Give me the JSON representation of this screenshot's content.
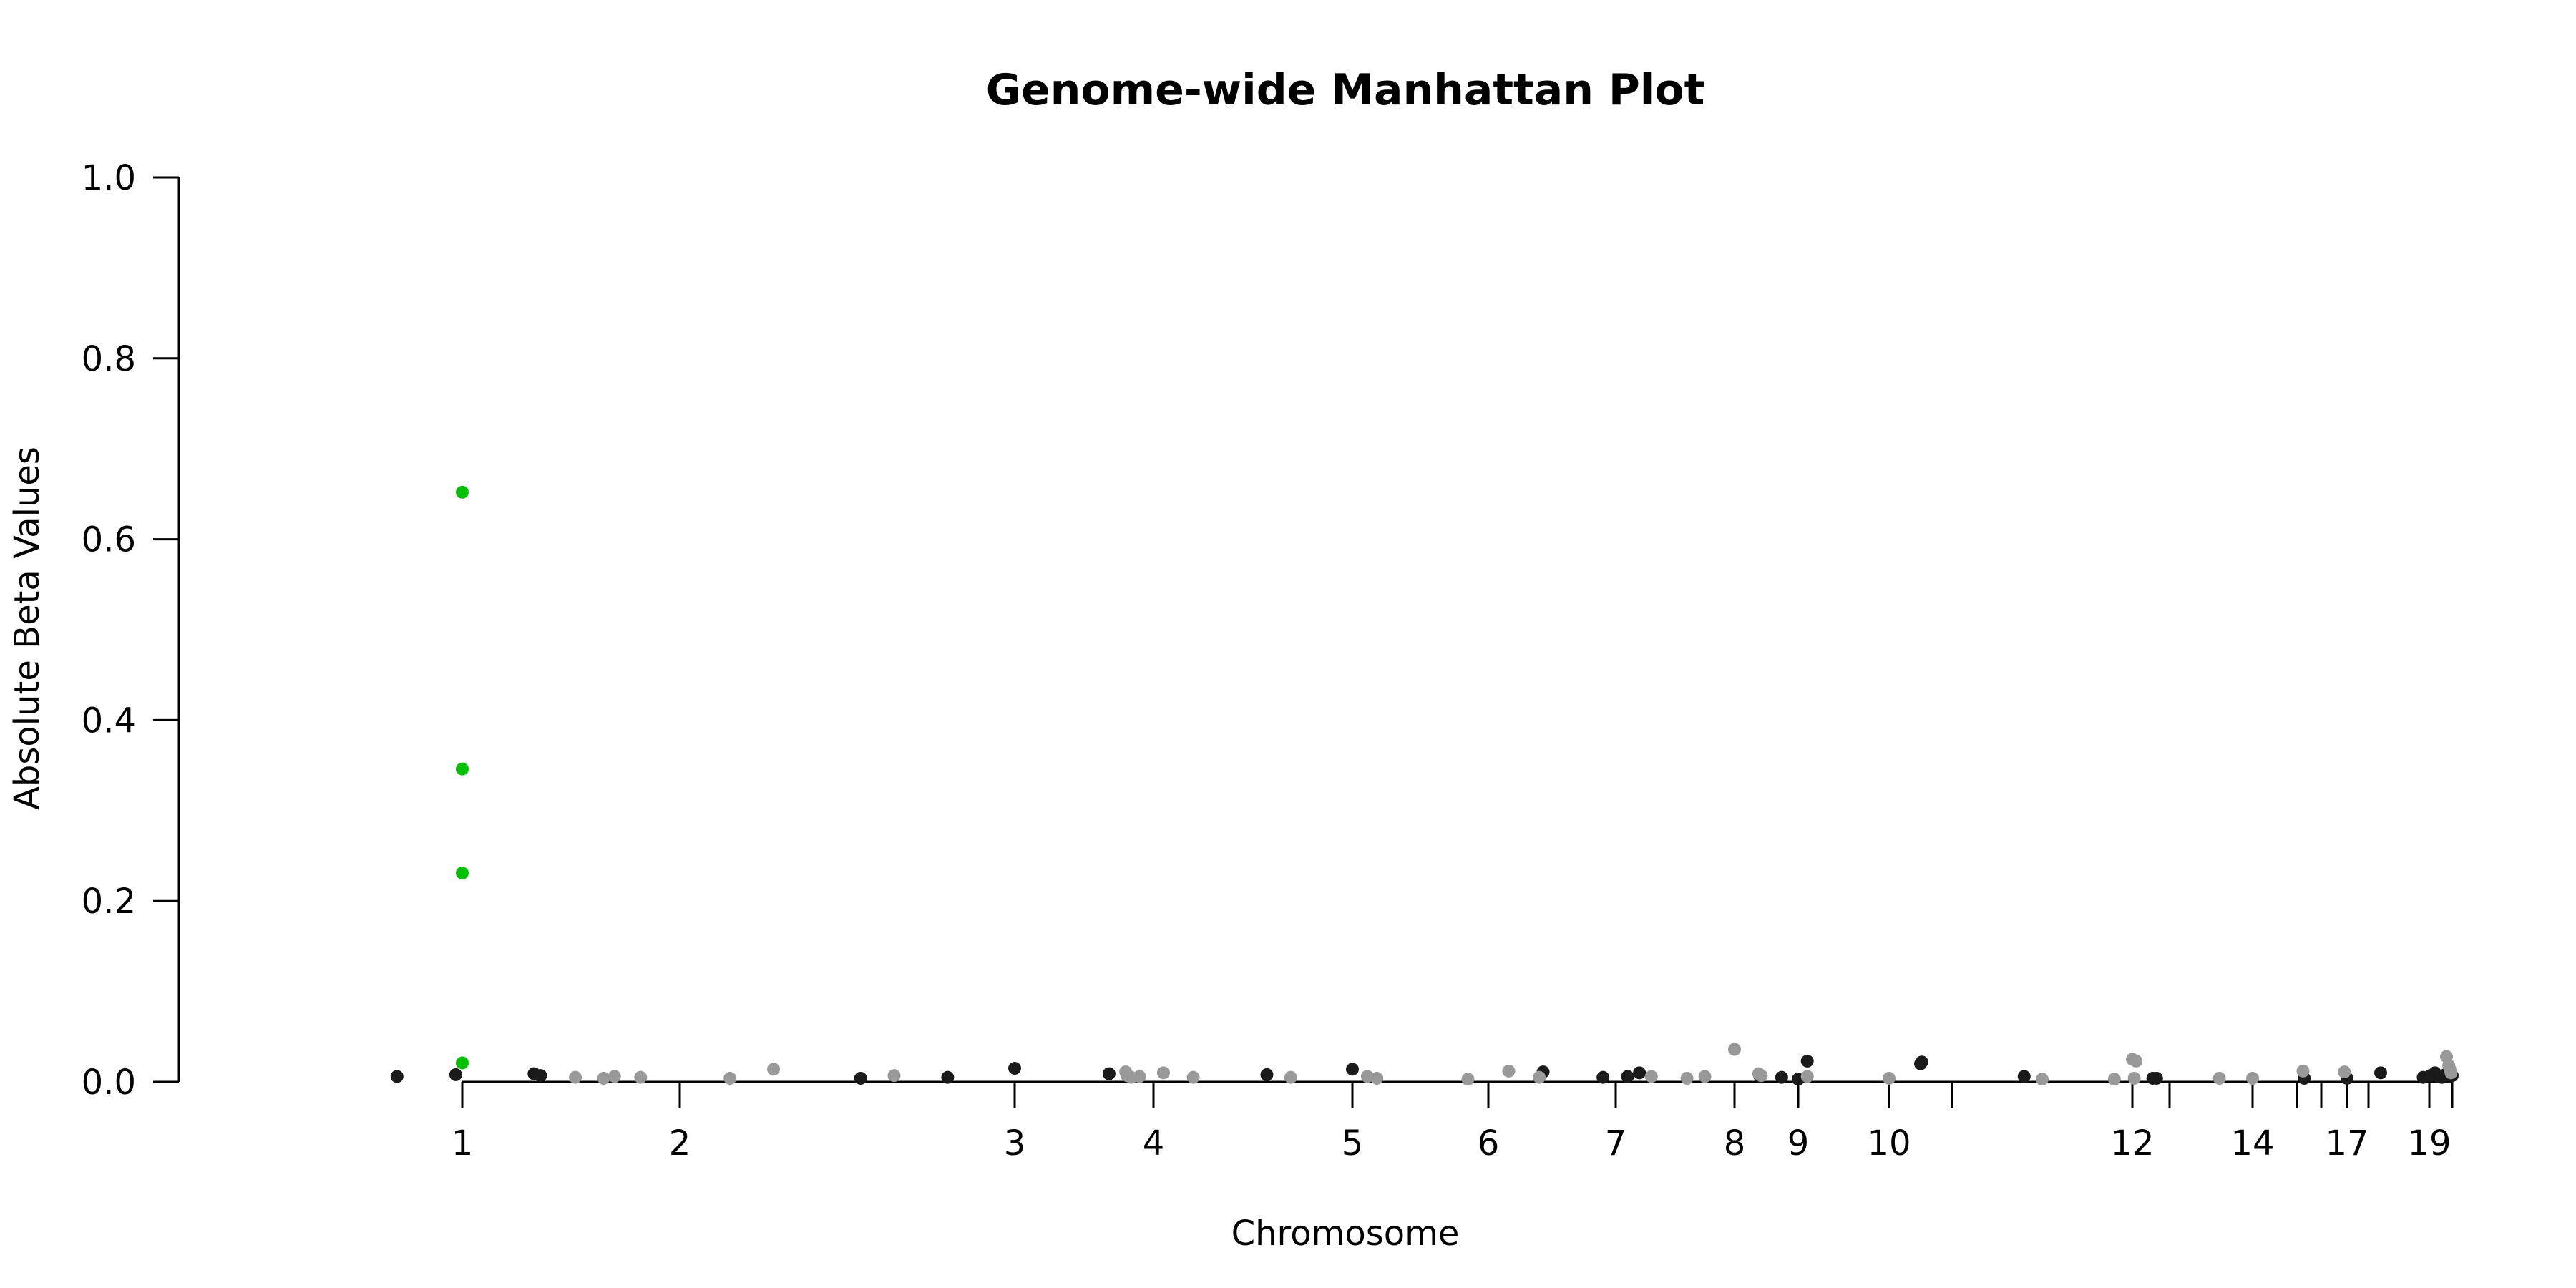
{
  "chart_data": {
    "type": "scatter",
    "title": "Genome-wide Manhattan Plot",
    "xlabel": "Chromosome",
    "ylabel": "Absolute Beta Values",
    "ylim": [
      0,
      1
    ],
    "yticks": [
      "0.0",
      "0.2",
      "0.4",
      "0.6",
      "0.8",
      "1.0"
    ],
    "grid": false,
    "legend": "none",
    "colors": {
      "dark": "#1a1a1a",
      "light": "#999999",
      "highlight": "#00c000"
    },
    "chromosomes": [
      {
        "label": "1",
        "pos": 1
      },
      {
        "label": "2",
        "pos": 2
      },
      {
        "label": "3",
        "pos": 3
      },
      {
        "label": "4",
        "pos": 4
      },
      {
        "label": "5",
        "pos": 5
      },
      {
        "label": "6",
        "pos": 6
      },
      {
        "label": "7",
        "pos": 7
      },
      {
        "label": "8",
        "pos": 8
      },
      {
        "label": "9",
        "pos": 9
      },
      {
        "label": "10",
        "pos": 10
      },
      {
        "label": "",
        "pos": 11
      },
      {
        "label": "12",
        "pos": 12
      },
      {
        "label": "",
        "pos": 13
      },
      {
        "label": "14",
        "pos": 14
      },
      {
        "label": "",
        "pos": 15
      },
      {
        "label": "",
        "pos": 16
      },
      {
        "label": "17",
        "pos": 17
      },
      {
        "label": "",
        "pos": 18
      },
      {
        "label": "19",
        "pos": 19
      },
      {
        "label": "",
        "pos": 20
      }
    ],
    "highlight_points": [
      {
        "x": 1.0,
        "y": 0.652
      },
      {
        "x": 1.0,
        "y": 0.346
      },
      {
        "x": 1.0,
        "y": 0.231
      },
      {
        "x": 1.0,
        "y": 0.021
      }
    ],
    "series": [
      {
        "color": "dark",
        "points": [
          [
            0.7,
            0.006
          ],
          [
            0.97,
            0.008
          ],
          [
            1.33,
            0.009
          ],
          [
            1.36,
            0.007
          ],
          [
            2.54,
            0.004
          ],
          [
            2.8,
            0.005
          ],
          [
            3.0,
            0.015
          ],
          [
            3.68,
            0.009
          ],
          [
            4.57,
            0.008
          ],
          [
            5.0,
            0.014
          ],
          [
            6.43,
            0.011
          ],
          [
            6.9,
            0.005
          ],
          [
            7.1,
            0.006
          ],
          [
            7.2,
            0.01
          ],
          [
            8.4,
            0.006
          ],
          [
            8.74,
            0.005
          ],
          [
            9.0,
            0.003
          ],
          [
            9.1,
            0.023
          ],
          [
            10.5,
            0.02
          ],
          [
            10.52,
            0.022
          ],
          [
            11.4,
            0.006
          ],
          [
            12.55,
            0.004
          ],
          [
            12.65,
            0.004
          ],
          [
            15.3,
            0.004
          ],
          [
            17.0,
            0.004
          ],
          [
            18.2,
            0.01
          ],
          [
            18.9,
            0.005
          ],
          [
            19.05,
            0.007
          ],
          [
            19.25,
            0.01
          ],
          [
            19.4,
            0.006
          ],
          [
            19.55,
            0.005
          ],
          [
            19.7,
            0.008
          ],
          [
            19.9,
            0.006
          ],
          [
            20.0,
            0.007
          ]
        ]
      },
      {
        "color": "light",
        "points": [
          [
            1.52,
            0.005
          ],
          [
            1.65,
            0.004
          ],
          [
            1.7,
            0.006
          ],
          [
            1.82,
            0.005
          ],
          [
            2.15,
            0.004
          ],
          [
            2.28,
            0.014
          ],
          [
            2.64,
            0.007
          ],
          [
            3.8,
            0.011
          ],
          [
            3.81,
            0.007
          ],
          [
            3.84,
            0.005
          ],
          [
            3.9,
            0.006
          ],
          [
            4.05,
            0.01
          ],
          [
            4.2,
            0.005
          ],
          [
            4.69,
            0.005
          ],
          [
            5.11,
            0.006
          ],
          [
            5.18,
            0.004
          ],
          [
            5.85,
            0.003
          ],
          [
            6.16,
            0.012
          ],
          [
            6.4,
            0.005
          ],
          [
            7.3,
            0.006
          ],
          [
            7.6,
            0.004
          ],
          [
            7.75,
            0.006
          ],
          [
            8.0,
            0.036
          ],
          [
            8.38,
            0.009
          ],
          [
            8.42,
            0.007
          ],
          [
            9.1,
            0.006
          ],
          [
            10.0,
            0.004
          ],
          [
            11.5,
            0.003
          ],
          [
            11.9,
            0.003
          ],
          [
            12.0,
            0.025
          ],
          [
            12.05,
            0.004
          ],
          [
            12.1,
            0.023
          ],
          [
            13.6,
            0.004
          ],
          [
            14.0,
            0.004
          ],
          [
            15.25,
            0.012
          ],
          [
            16.9,
            0.011
          ],
          [
            19.75,
            0.028
          ],
          [
            19.85,
            0.018
          ],
          [
            19.9,
            0.014
          ],
          [
            19.95,
            0.01
          ]
        ]
      }
    ]
  }
}
